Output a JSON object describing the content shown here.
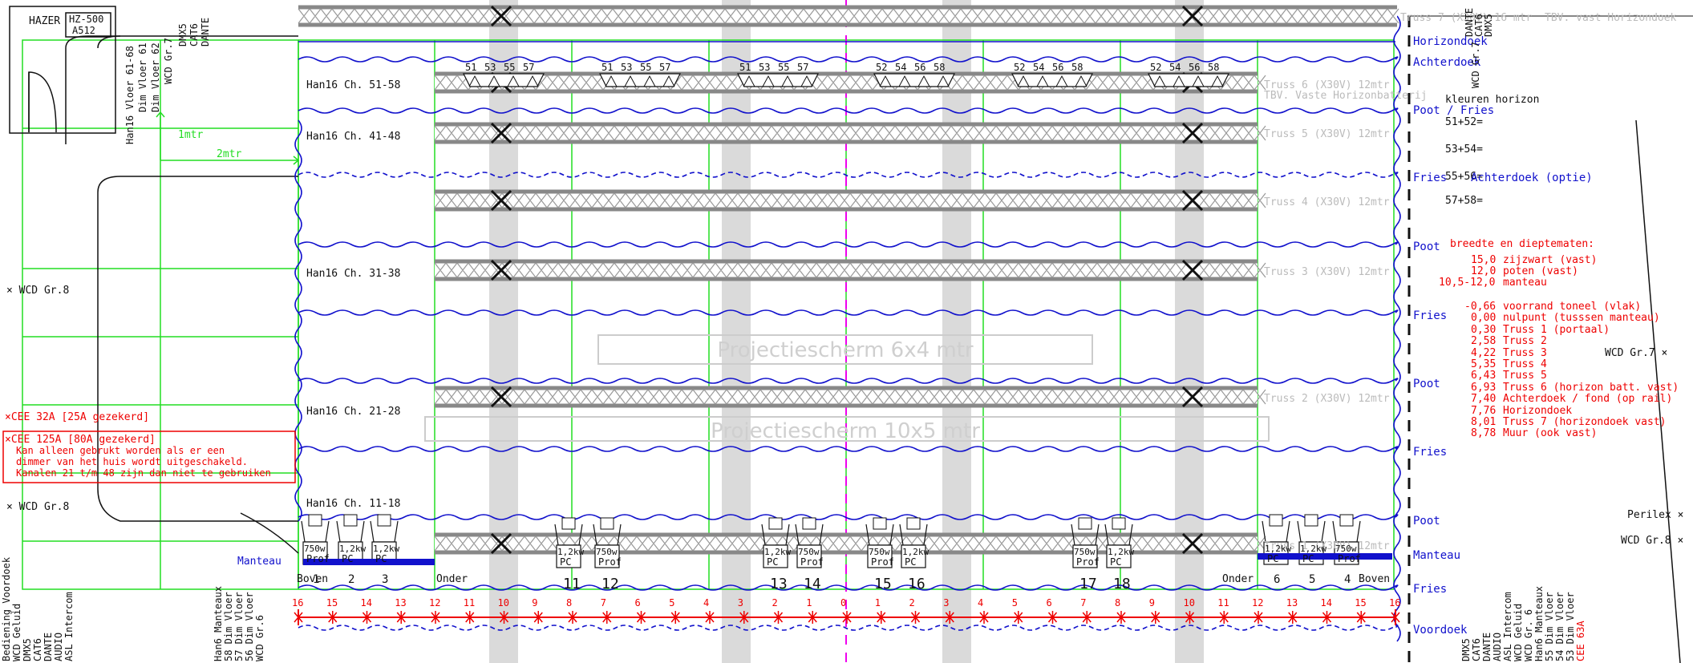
{
  "left_devices": {
    "hazer": "HAZER",
    "hazer_model": "HZ-500",
    "hazer_addr": "A512",
    "floor_labels": [
      "Han16 Vloer 61-68",
      "Dim Vloer 61",
      "Dim Vloer 62",
      "WCD Gr.7"
    ],
    "top_connectors": [
      "DMX5",
      "CAT6",
      "DANTE"
    ],
    "wcd_left_1": "WCD Gr.8",
    "wcd_left_2": "WCD Gr.8",
    "cee_32": "CEE 32A [25A gezekerd]",
    "cee_125": "CEE 125A [80A gezekerd]",
    "cee_note": [
      "Kan alleen gebrukt worden als er een",
      "dimmer van het huis wordt uitgeschakeld.",
      "Kanalen 21 t/m 48 zijn dan niet te gebruiken"
    ],
    "bottom_left_vert": [
      "Bediening Voordoek",
      "WCD Geluid",
      "DMX5",
      "CAT6",
      "DANTE",
      "AUDIO",
      "ASL Intercom"
    ],
    "bottom_mid_vert": [
      "Han6 Manteaux",
      "58 Dim Vloer",
      "57 Dim Vloer",
      "56 Dim Vloer",
      "WCD Gr.6"
    ]
  },
  "dims": {
    "one_meter": "1mtr",
    "two_meter": "2mtr"
  },
  "stage_rows": [
    {
      "name": "Han16 Ch. 51-58"
    },
    {
      "name": "Han16 Ch. 41-48"
    },
    {
      "name": "Han16 Ch. 31-38"
    },
    {
      "name": "Han16 Ch. 21-28"
    },
    {
      "name": "Han16 Ch. 11-18"
    }
  ],
  "truss_labels": [
    "Truss 7 (X30V) 16 mtr  TBV. vast Horizondoek",
    "Truss 6 (X30V) 12mtr",
    "TBV. Vaste Horizonbatterij",
    "Truss 5 (X30V) 12mtr",
    "Truss 4 (X30V) 12mtr",
    "Truss 3 (X30V) 12mtr",
    "Truss 2 (X30V) 12mtr",
    "Truss 1 (X30V) 12mtr"
  ],
  "screens": [
    "Projectiescherm 6x4 mtr",
    "Projectiescherm 10x5 mtr"
  ],
  "right_side_labels": {
    "horizondoek": "Horizondoek",
    "achterdoek": "Achterdoek",
    "poot_fries": "Poot / Fries",
    "fries_1": "Fries",
    "poot_1": "Poot",
    "fries_2": "Fries",
    "poot_2": "Poot",
    "fries_3": "Fries",
    "poot_3": "Poot",
    "manteau": "Manteau",
    "fries_4": "Fries",
    "voordoek": "Voordoek",
    "wcd_gr7_top": "WCD Gr.7",
    "right_connectors": [
      "DANTE",
      "CAT6",
      "DMX5"
    ],
    "left_manteau": "Manteau"
  },
  "horizon_colors": {
    "title": "kleuren horizon",
    "items": [
      "51+52=",
      "53+54=",
      "55+56=",
      "57+58="
    ],
    "overlay": "Achterdoek (optie)"
  },
  "dimensions": {
    "title": "breedte en dieptematen:",
    "widths": [
      {
        "value": "15,0",
        "label": "zijzwart (vast)"
      },
      {
        "value": "12,0",
        "label": "poten (vast)"
      },
      {
        "value": "10,5-12,0",
        "label": "manteau"
      }
    ],
    "depths": [
      {
        "value": "-0,66",
        "label": "voorrand toneel (vlak)"
      },
      {
        "value": "0,00",
        "label": "nulpunt (tusssen manteau)"
      },
      {
        "value": "0,30",
        "label": "Truss 1 (portaal)"
      },
      {
        "value": "2,58",
        "label": "Truss 2"
      },
      {
        "value": "4,22",
        "label": "Truss 3"
      },
      {
        "value": "5,35",
        "label": "Truss 4"
      },
      {
        "value": "6,43",
        "label": "Truss 5"
      },
      {
        "value": "6,93",
        "label": "Truss 6 (horizon batt. vast)"
      },
      {
        "value": "7,40",
        "label": "Achterdoek / fond (op rail)"
      },
      {
        "value": "7,76",
        "label": "Horizondoek"
      },
      {
        "value": "8,01",
        "label": "Truss 7 (horizondoek vast)"
      },
      {
        "value": "8,78",
        "label": "Muur (ook vast)"
      }
    ]
  },
  "far_right": {
    "wcd_gr7": "WCD Gr.7",
    "perilex": "Perilex",
    "wcd_gr8": "WCD Gr.8"
  },
  "bottom_right_vert": [
    "DMX5",
    "CAT6",
    "DANTE",
    "AUDIO",
    "ASL Intercom",
    "WCD Geluid",
    "WCD Gr. 6",
    "Han6 Manteaux",
    "55 Dim Vloer",
    "54 Dim Vloer",
    "53 Dim Vloer",
    "CEE 63A"
  ],
  "batten_channels": {
    "left_group": [
      "51",
      "53",
      "55",
      "57",
      "51",
      "53",
      "55",
      "57",
      "51",
      "53",
      "55",
      "57"
    ],
    "right_group": [
      "52",
      "54",
      "56",
      "58",
      "52",
      "54",
      "56",
      "58",
      "52",
      "54",
      "56",
      "58"
    ]
  },
  "fixtures": {
    "floor": {
      "boven_left": "Boven",
      "onder_left": "Onder",
      "onder_right": "Onder",
      "boven_right": "Boven",
      "left_numbers": [
        "1",
        "2",
        "3"
      ],
      "right_numbers": [
        "6",
        "5",
        "4"
      ],
      "left_types": [
        [
          "750w",
          "Prof"
        ],
        [
          "1,2kw",
          "PC"
        ],
        [
          "1,2kw",
          "PC"
        ]
      ],
      "right_types": [
        [
          "1,2kw",
          "PC"
        ],
        [
          "1,2kw",
          "PC"
        ],
        [
          "750w",
          "Prof"
        ]
      ]
    },
    "truss1": [
      {
        "num": "11",
        "type": [
          "1,2kw",
          "PC"
        ]
      },
      {
        "num": "12",
        "type": [
          "750w",
          "Prof"
        ]
      },
      {
        "num": "13",
        "type": [
          "1,2kw",
          "PC"
        ]
      },
      {
        "num": "14",
        "type": [
          "750w",
          "Prof"
        ]
      },
      {
        "num": "15",
        "type": [
          "750w",
          "Prof"
        ]
      },
      {
        "num": "16",
        "type": [
          "1,2kw",
          "PC"
        ]
      },
      {
        "num": "17",
        "type": [
          "750w",
          "Prof"
        ]
      },
      {
        "num": "18",
        "type": [
          "1,2kw",
          "PC"
        ]
      }
    ]
  },
  "measure_ruler": [
    "16",
    "15",
    "14",
    "13",
    "12",
    "11",
    "10",
    "9",
    "8",
    "7",
    "6",
    "5",
    "4",
    "3",
    "2",
    "1",
    "0",
    "1",
    "2",
    "3",
    "4",
    "5",
    "6",
    "7",
    "8",
    "9",
    "10",
    "11",
    "12",
    "13",
    "14",
    "15",
    "16"
  ],
  "colors": {
    "red": "#ee0000",
    "blue": "#1111cc",
    "green": "#22dd22",
    "grey": "#bbbbbb",
    "truss": "#888888",
    "lane": "#d8d8d8",
    "magenta": "#ee00ee"
  }
}
